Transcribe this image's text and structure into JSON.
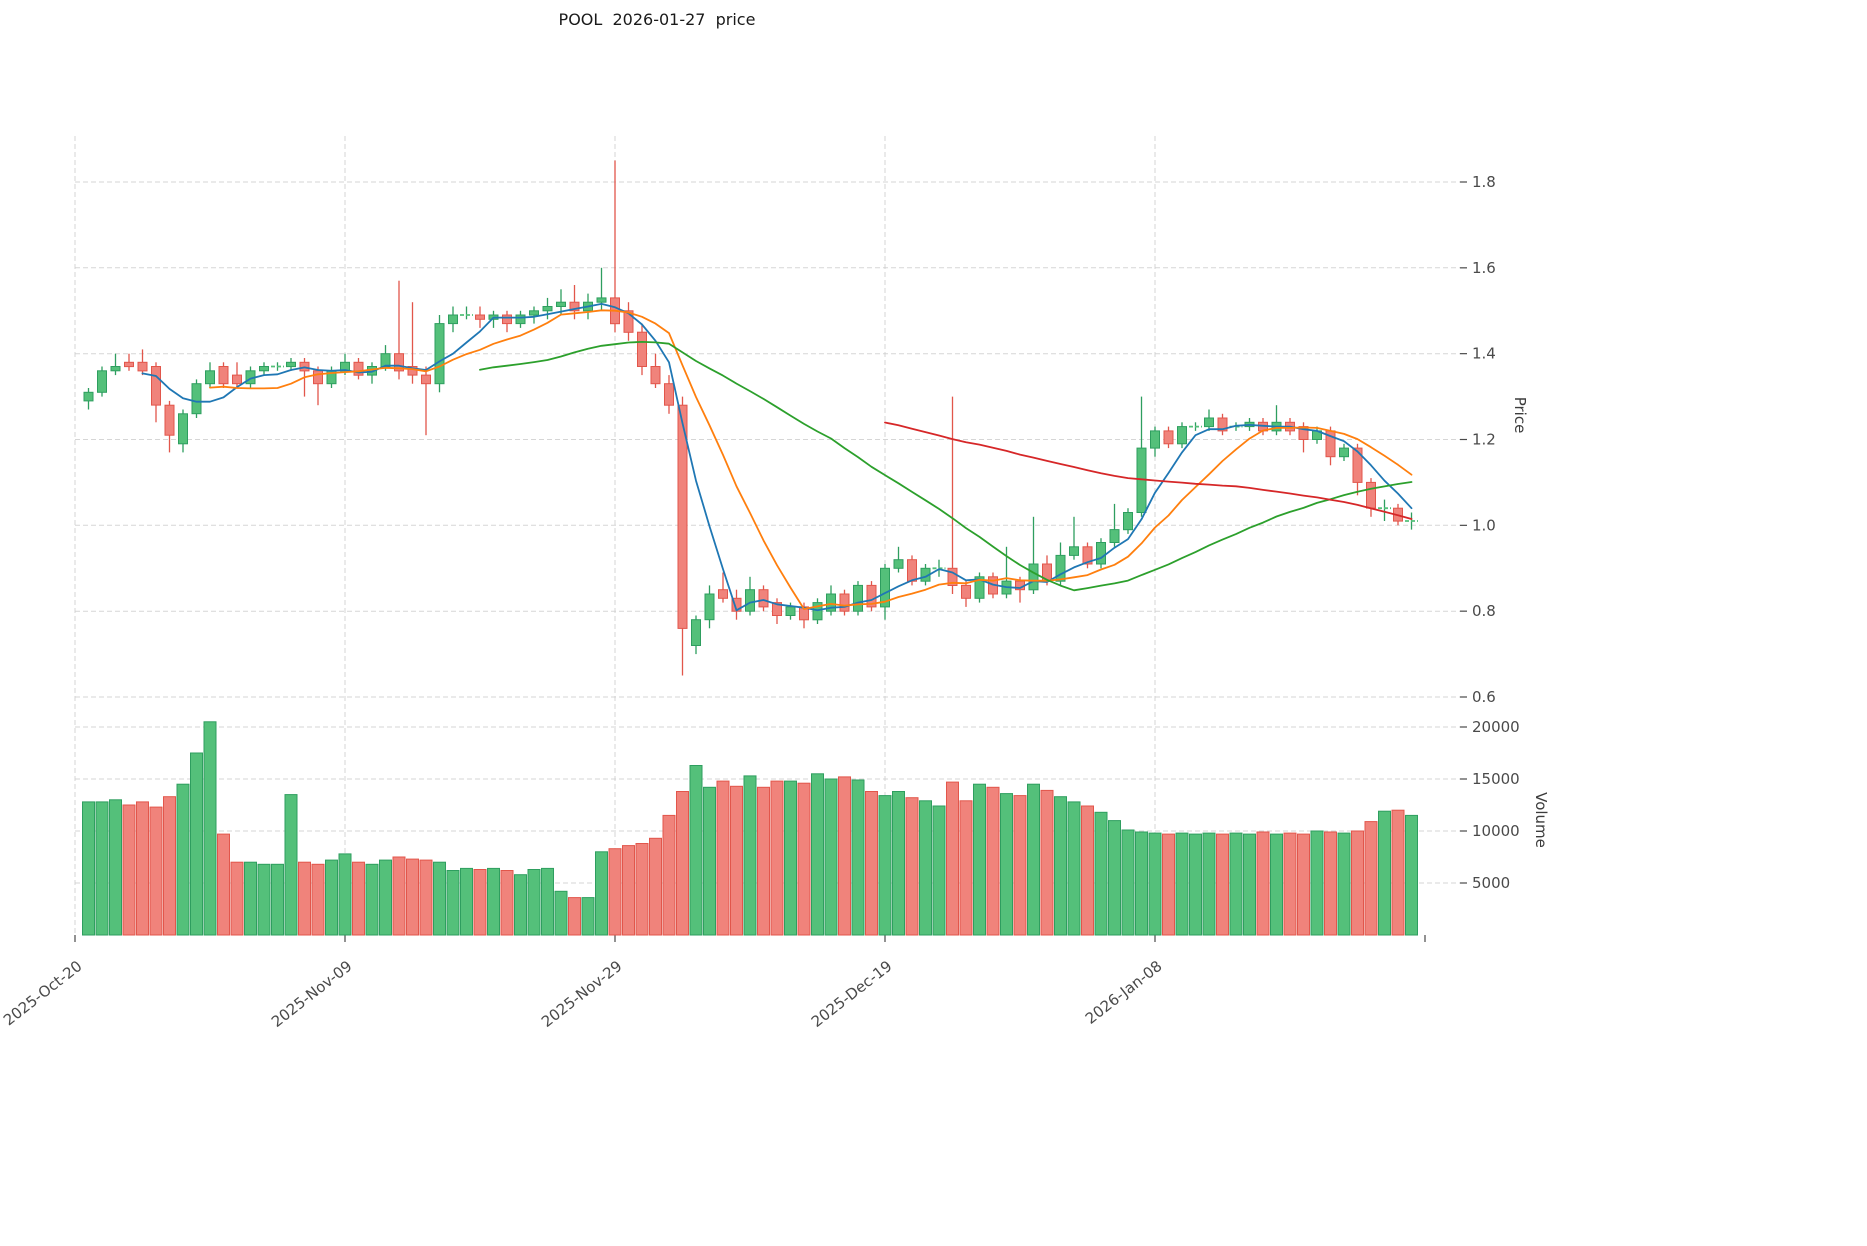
{
  "chart_data": {
    "type": "candlestick",
    "title": "POOL  2026-01-27  price",
    "right_axis_labels": {
      "price": "Price",
      "volume": "Volume"
    },
    "price_ticks": [
      0.6,
      0.8,
      1.0,
      1.2,
      1.4,
      1.6,
      1.8
    ],
    "volume_ticks": [
      5000,
      10000,
      15000,
      20000
    ],
    "x_ticks": [
      {
        "label": "2025-Oct-20",
        "day": -1
      },
      {
        "label": "2025-Nov-09",
        "day": 19
      },
      {
        "label": "2025-Nov-29",
        "day": 39
      },
      {
        "label": "2025-Dec-19",
        "day": 59
      },
      {
        "label": "2026-Jan-08",
        "day": 79
      }
    ],
    "extra_x_tick_days": [
      99
    ],
    "ma_config": [
      {
        "label": "SMA5",
        "period": 5,
        "color": "#1f77b4"
      },
      {
        "label": "SMA10",
        "period": 10,
        "color": "#ff7f0e"
      },
      {
        "label": "SMA30",
        "period": 30,
        "color": "#2ca02c"
      },
      {
        "label": "SMA60",
        "period": 60,
        "color": "#d62728"
      }
    ],
    "colors": {
      "up": "#54c07a",
      "up_edge": "#2e9e5f",
      "down": "#f0837b",
      "down_edge": "#e2564b",
      "grid": "#c9c9c9",
      "tick_text": "#4a4a4a"
    },
    "candles_format": [
      "open",
      "high",
      "low",
      "close",
      "volume"
    ],
    "candles": [
      [
        1.29,
        1.32,
        1.27,
        1.31,
        12800
      ],
      [
        1.31,
        1.37,
        1.3,
        1.36,
        12800
      ],
      [
        1.36,
        1.4,
        1.35,
        1.37,
        13000
      ],
      [
        1.38,
        1.4,
        1.36,
        1.37,
        12500
      ],
      [
        1.38,
        1.41,
        1.35,
        1.36,
        12800
      ],
      [
        1.37,
        1.38,
        1.24,
        1.28,
        12300
      ],
      [
        1.28,
        1.29,
        1.17,
        1.21,
        13300
      ],
      [
        1.19,
        1.27,
        1.17,
        1.26,
        14500
      ],
      [
        1.26,
        1.34,
        1.25,
        1.33,
        17500
      ],
      [
        1.33,
        1.38,
        1.32,
        1.36,
        20500
      ],
      [
        1.37,
        1.38,
        1.32,
        1.33,
        9700
      ],
      [
        1.35,
        1.38,
        1.32,
        1.33,
        7000
      ],
      [
        1.33,
        1.37,
        1.32,
        1.36,
        7000
      ],
      [
        1.36,
        1.38,
        1.35,
        1.37,
        6800
      ],
      [
        1.37,
        1.38,
        1.36,
        1.37,
        6800
      ],
      [
        1.37,
        1.39,
        1.36,
        1.38,
        13500
      ],
      [
        1.38,
        1.39,
        1.3,
        1.36,
        7000
      ],
      [
        1.36,
        1.37,
        1.28,
        1.33,
        6800
      ],
      [
        1.33,
        1.37,
        1.32,
        1.36,
        7200
      ],
      [
        1.36,
        1.4,
        1.35,
        1.38,
        7800
      ],
      [
        1.38,
        1.39,
        1.34,
        1.35,
        7000
      ],
      [
        1.35,
        1.38,
        1.33,
        1.37,
        6800
      ],
      [
        1.37,
        1.42,
        1.36,
        1.4,
        7200
      ],
      [
        1.4,
        1.57,
        1.34,
        1.36,
        7500
      ],
      [
        1.37,
        1.52,
        1.33,
        1.35,
        7300
      ],
      [
        1.35,
        1.37,
        1.21,
        1.33,
        7200
      ],
      [
        1.33,
        1.49,
        1.31,
        1.47,
        7000
      ],
      [
        1.47,
        1.51,
        1.45,
        1.49,
        6200
      ],
      [
        1.49,
        1.51,
        1.48,
        1.49,
        6400
      ],
      [
        1.49,
        1.51,
        1.46,
        1.48,
        6300
      ],
      [
        1.48,
        1.5,
        1.46,
        1.49,
        6400
      ],
      [
        1.49,
        1.5,
        1.45,
        1.47,
        6200
      ],
      [
        1.47,
        1.5,
        1.46,
        1.49,
        5800
      ],
      [
        1.49,
        1.51,
        1.47,
        1.5,
        6300
      ],
      [
        1.5,
        1.53,
        1.48,
        1.51,
        6400
      ],
      [
        1.51,
        1.55,
        1.49,
        1.52,
        4200
      ],
      [
        1.52,
        1.56,
        1.48,
        1.5,
        3600
      ],
      [
        1.5,
        1.54,
        1.48,
        1.52,
        3600
      ],
      [
        1.52,
        1.6,
        1.5,
        1.53,
        8000
      ],
      [
        1.53,
        1.85,
        1.45,
        1.47,
        8300
      ],
      [
        1.5,
        1.52,
        1.43,
        1.45,
        8600
      ],
      [
        1.45,
        1.47,
        1.35,
        1.37,
        8800
      ],
      [
        1.37,
        1.4,
        1.32,
        1.33,
        9300
      ],
      [
        1.33,
        1.35,
        1.26,
        1.28,
        11500
      ],
      [
        1.28,
        1.3,
        0.65,
        0.76,
        13800
      ],
      [
        0.72,
        0.79,
        0.7,
        0.78,
        16300
      ],
      [
        0.78,
        0.86,
        0.76,
        0.84,
        14200
      ],
      [
        0.85,
        0.89,
        0.82,
        0.83,
        14800
      ],
      [
        0.83,
        0.85,
        0.78,
        0.8,
        14300
      ],
      [
        0.8,
        0.88,
        0.79,
        0.85,
        15300
      ],
      [
        0.85,
        0.86,
        0.8,
        0.81,
        14200
      ],
      [
        0.82,
        0.83,
        0.77,
        0.79,
        14800
      ],
      [
        0.79,
        0.82,
        0.78,
        0.81,
        14800
      ],
      [
        0.81,
        0.82,
        0.76,
        0.78,
        14600
      ],
      [
        0.78,
        0.83,
        0.77,
        0.82,
        15500
      ],
      [
        0.8,
        0.86,
        0.79,
        0.84,
        15000
      ],
      [
        0.84,
        0.85,
        0.79,
        0.8,
        15200
      ],
      [
        0.8,
        0.87,
        0.79,
        0.86,
        14900
      ],
      [
        0.86,
        0.87,
        0.8,
        0.81,
        13800
      ],
      [
        0.81,
        0.91,
        0.78,
        0.9,
        13400
      ],
      [
        0.9,
        0.95,
        0.89,
        0.92,
        13800
      ],
      [
        0.92,
        0.93,
        0.86,
        0.87,
        13200
      ],
      [
        0.87,
        0.91,
        0.86,
        0.9,
        12900
      ],
      [
        0.9,
        0.92,
        0.88,
        0.9,
        12400
      ],
      [
        0.9,
        1.3,
        0.84,
        0.86,
        14700
      ],
      [
        0.86,
        0.87,
        0.81,
        0.83,
        12900
      ],
      [
        0.83,
        0.89,
        0.82,
        0.88,
        14500
      ],
      [
        0.88,
        0.89,
        0.83,
        0.84,
        14200
      ],
      [
        0.84,
        0.95,
        0.83,
        0.87,
        13600
      ],
      [
        0.87,
        0.88,
        0.82,
        0.85,
        13400
      ],
      [
        0.85,
        1.02,
        0.84,
        0.91,
        14500
      ],
      [
        0.91,
        0.93,
        0.86,
        0.87,
        13900
      ],
      [
        0.87,
        0.96,
        0.86,
        0.93,
        13300
      ],
      [
        0.93,
        1.02,
        0.92,
        0.95,
        12800
      ],
      [
        0.95,
        0.96,
        0.9,
        0.91,
        12400
      ],
      [
        0.91,
        0.97,
        0.9,
        0.96,
        11800
      ],
      [
        0.96,
        1.05,
        0.95,
        0.99,
        11000
      ],
      [
        0.99,
        1.04,
        0.98,
        1.03,
        10100
      ],
      [
        1.03,
        1.3,
        1.02,
        1.18,
        9900
      ],
      [
        1.18,
        1.23,
        1.16,
        1.22,
        9800
      ],
      [
        1.22,
        1.23,
        1.18,
        1.19,
        9700
      ],
      [
        1.19,
        1.24,
        1.18,
        1.23,
        9800
      ],
      [
        1.23,
        1.24,
        1.22,
        1.23,
        9700
      ],
      [
        1.23,
        1.27,
        1.22,
        1.25,
        9800
      ],
      [
        1.25,
        1.26,
        1.21,
        1.22,
        9700
      ],
      [
        1.23,
        1.24,
        1.22,
        1.23,
        9800
      ],
      [
        1.23,
        1.25,
        1.22,
        1.24,
        9700
      ],
      [
        1.24,
        1.25,
        1.21,
        1.22,
        9900
      ],
      [
        1.22,
        1.28,
        1.21,
        1.24,
        9700
      ],
      [
        1.24,
        1.25,
        1.21,
        1.22,
        9800
      ],
      [
        1.23,
        1.24,
        1.17,
        1.2,
        9700
      ],
      [
        1.2,
        1.23,
        1.19,
        1.22,
        10000
      ],
      [
        1.22,
        1.23,
        1.14,
        1.16,
        9900
      ],
      [
        1.16,
        1.19,
        1.15,
        1.18,
        9800
      ],
      [
        1.18,
        1.19,
        1.07,
        1.1,
        10000
      ],
      [
        1.1,
        1.11,
        1.02,
        1.04,
        10900
      ],
      [
        1.04,
        1.06,
        1.01,
        1.04,
        11900
      ],
      [
        1.04,
        1.05,
        1.0,
        1.01,
        12000
      ],
      [
        1.01,
        1.03,
        0.99,
        1.01,
        11500
      ]
    ]
  }
}
